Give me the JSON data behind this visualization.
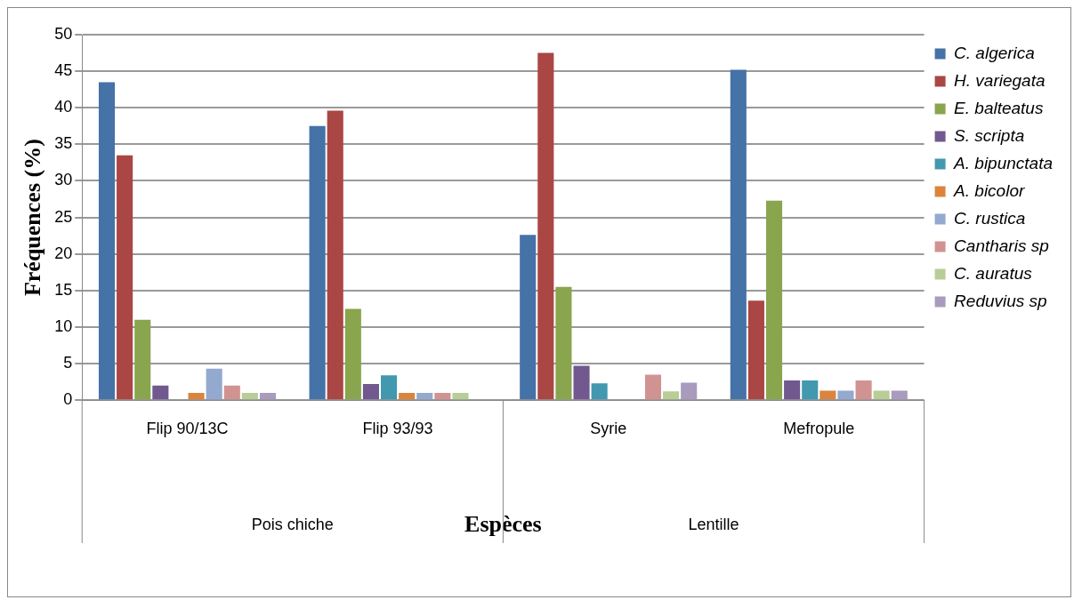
{
  "chart_data": {
    "type": "bar",
    "xlabel": "Espèces",
    "ylabel": "Fréquences (%)",
    "categories": [
      "Flip 90/13C",
      "Flip 93/93",
      "Syrie",
      "Mefropule"
    ],
    "annotations": [
      "Pois chiche",
      "Lentille"
    ],
    "series": [
      {
        "name": "C. algerica",
        "color": "#4572a7",
        "values": [
          43.5,
          37.5,
          22.6,
          45.2
        ]
      },
      {
        "name": "H. variegata",
        "color": "#aa4643",
        "values": [
          33.5,
          39.6,
          47.5,
          13.6
        ]
      },
      {
        "name": "E. balteatus",
        "color": "#89a54e",
        "values": [
          11,
          12.5,
          15.5,
          27.3
        ]
      },
      {
        "name": "S. scripta",
        "color": "#71588f",
        "values": [
          2,
          2.2,
          4.7,
          2.7
        ]
      },
      {
        "name": "A. bipunctata",
        "color": "#4198af",
        "values": [
          0,
          3.4,
          2.3,
          2.7
        ]
      },
      {
        "name": "A. bicolor",
        "color": "#db843d",
        "values": [
          1,
          1,
          0,
          1.3
        ]
      },
      {
        "name": "C. rustica",
        "color": "#93a9cf",
        "values": [
          4.3,
          1,
          0,
          1.3
        ]
      },
      {
        "name": "Cantharis sp",
        "color": "#d19392",
        "values": [
          2,
          1,
          3.5,
          2.7
        ]
      },
      {
        "name": "C. auratus",
        "color": "#b9cd96",
        "values": [
          1,
          1,
          1.2,
          1.3
        ]
      },
      {
        "name": "Reduvius sp",
        "color": "#a99bbd",
        "values": [
          1,
          0,
          2.4,
          1.3
        ]
      }
    ],
    "ylim": [
      0,
      50
    ],
    "yticks": [
      0,
      5,
      10,
      15,
      20,
      25,
      30,
      35,
      40,
      45,
      50
    ],
    "grid": "y",
    "legend": "right"
  }
}
